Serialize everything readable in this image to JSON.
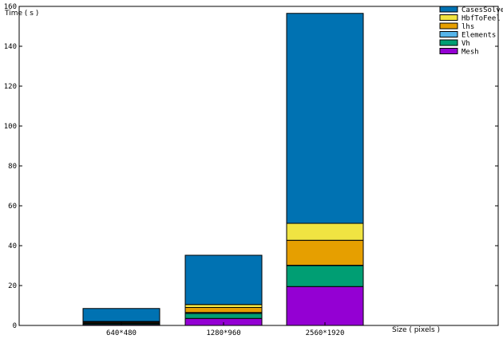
{
  "chart_data": {
    "type": "bar",
    "stacked": true,
    "categories": [
      "640*480",
      "1280*960",
      "2560*1920"
    ],
    "series": [
      {
        "name": "Mesh",
        "color": "#9400d3",
        "values": [
          0.5,
          3.5,
          19.5
        ]
      },
      {
        "name": "Vh",
        "color": "#009e73",
        "values": [
          0.5,
          2.5,
          10.5
        ]
      },
      {
        "name": "Elements",
        "color": "#56b4e9",
        "values": [
          0.2,
          0.5,
          0.2
        ]
      },
      {
        "name": "lhs",
        "color": "#e69f00",
        "values": [
          0.5,
          2.5,
          12.5
        ]
      },
      {
        "name": "HbfToFeel",
        "color": "#f0e442",
        "values": [
          0.3,
          1.5,
          8.5
        ]
      },
      {
        "name": "CasesSolve",
        "color": "#0072b2",
        "values": [
          6.5,
          24.7,
          105.3
        ]
      }
    ],
    "legend_order": [
      "CasesSolve",
      "HbfToFeel",
      "lhs",
      "Elements",
      "Vh",
      "Mesh"
    ],
    "legend_position": "top-right",
    "ylabel": "Time ( s )",
    "xlabel": "Size ( pixels )",
    "ylim": [
      0,
      160
    ],
    "yticks": [
      0,
      20,
      40,
      60,
      80,
      100,
      120,
      140,
      160
    ],
    "grid": false
  }
}
